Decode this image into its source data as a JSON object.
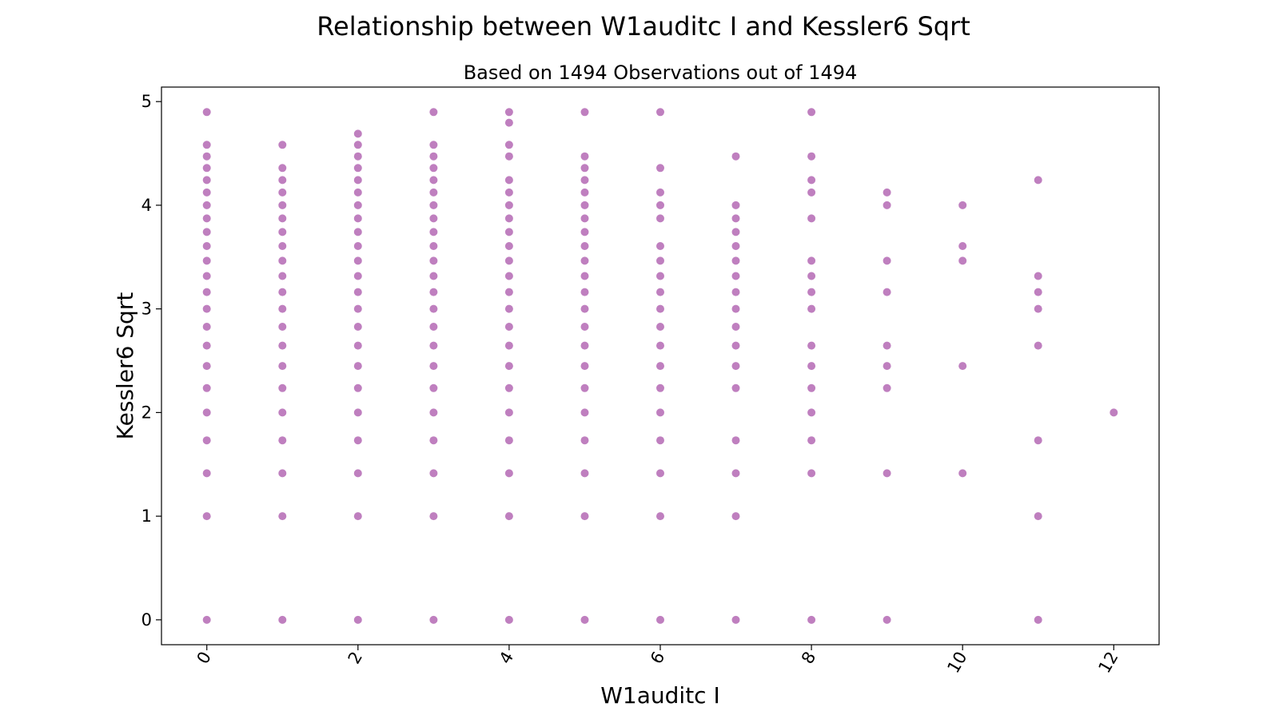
{
  "chart_data": {
    "type": "scatter",
    "title": "Relationship between W1auditc I and Kessler6 Sqrt",
    "subtitle": "Based on 1494 Observations out of 1494",
    "xlabel": "W1auditc I",
    "ylabel": "Kessler6 Sqrt",
    "xlim": [
      -0.6,
      12.6
    ],
    "ylim": [
      -0.24,
      5.14
    ],
    "xticks": [
      0,
      2,
      4,
      6,
      8,
      10,
      12
    ],
    "yticks": [
      0,
      1,
      2,
      3,
      4,
      5
    ],
    "xtick_rotation": -60,
    "grid": false,
    "legend": "none",
    "marker_color": "#800080",
    "marker_alpha": 0.5,
    "points": [
      {
        "x": 0,
        "ys": [
          0,
          1,
          1.414,
          1.732,
          2,
          2.236,
          2.449,
          2.646,
          2.828,
          3,
          3.162,
          3.317,
          3.464,
          3.606,
          3.742,
          3.873,
          4,
          4.123,
          4.243,
          4.359,
          4.472,
          4.583,
          4.899
        ]
      },
      {
        "x": 1,
        "ys": [
          0,
          1,
          1.414,
          1.732,
          2,
          2.236,
          2.449,
          2.646,
          2.828,
          3,
          3.162,
          3.317,
          3.464,
          3.606,
          3.742,
          3.873,
          4,
          4.123,
          4.243,
          4.359,
          4.583
        ]
      },
      {
        "x": 2,
        "ys": [
          0,
          1,
          1.414,
          1.732,
          2,
          2.236,
          2.449,
          2.646,
          2.828,
          3,
          3.162,
          3.317,
          3.464,
          3.606,
          3.742,
          3.873,
          4,
          4.123,
          4.243,
          4.359,
          4.472,
          4.583,
          4.69
        ]
      },
      {
        "x": 3,
        "ys": [
          0,
          1,
          1.414,
          1.732,
          2,
          2.236,
          2.449,
          2.646,
          2.828,
          3,
          3.162,
          3.317,
          3.464,
          3.606,
          3.742,
          3.873,
          4,
          4.123,
          4.243,
          4.359,
          4.472,
          4.583,
          4.899
        ]
      },
      {
        "x": 4,
        "ys": [
          0,
          1,
          1.414,
          1.732,
          2,
          2.236,
          2.449,
          2.646,
          2.828,
          3,
          3.162,
          3.317,
          3.464,
          3.606,
          3.742,
          3.873,
          4,
          4.123,
          4.243,
          4.472,
          4.583,
          4.796,
          4.899
        ]
      },
      {
        "x": 5,
        "ys": [
          0,
          1,
          1.414,
          1.732,
          2,
          2.236,
          2.449,
          2.646,
          2.828,
          3,
          3.162,
          3.317,
          3.464,
          3.606,
          3.742,
          3.873,
          4,
          4.123,
          4.243,
          4.359,
          4.472,
          4.899
        ]
      },
      {
        "x": 6,
        "ys": [
          0,
          1,
          1.414,
          1.732,
          2,
          2.236,
          2.449,
          2.646,
          2.828,
          3,
          3.162,
          3.317,
          3.464,
          3.606,
          3.873,
          4,
          4.123,
          4.359,
          4.899
        ]
      },
      {
        "x": 7,
        "ys": [
          0,
          1,
          1.414,
          1.732,
          2.236,
          2.449,
          2.646,
          2.828,
          3,
          3.162,
          3.317,
          3.464,
          3.606,
          3.742,
          3.873,
          4,
          4.472
        ]
      },
      {
        "x": 8,
        "ys": [
          0,
          1.414,
          1.732,
          2,
          2.236,
          2.449,
          2.646,
          3,
          3.162,
          3.317,
          3.464,
          3.873,
          4.123,
          4.243,
          4.472,
          4.899
        ]
      },
      {
        "x": 9,
        "ys": [
          0,
          1.414,
          2.236,
          2.449,
          2.646,
          3.162,
          3.464,
          4,
          4.123
        ]
      },
      {
        "x": 10,
        "ys": [
          1.414,
          2.449,
          3.464,
          3.606,
          4
        ]
      },
      {
        "x": 11,
        "ys": [
          0,
          1,
          1.732,
          2.646,
          3,
          3.162,
          3.317,
          4.243
        ]
      },
      {
        "x": 12,
        "ys": [
          2
        ]
      }
    ]
  }
}
